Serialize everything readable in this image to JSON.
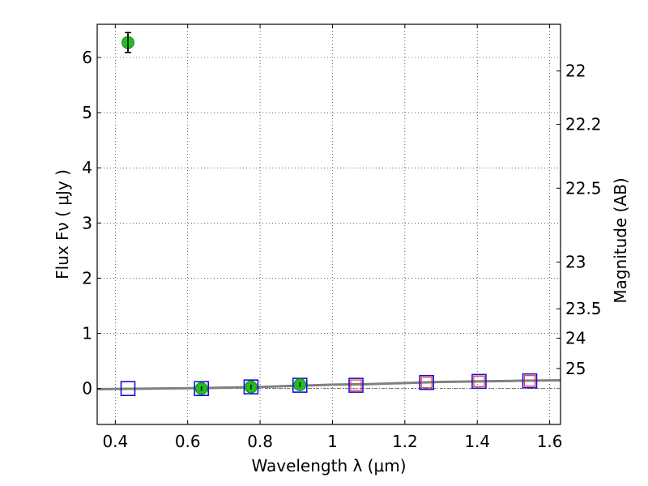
{
  "chart_data": {
    "type": "scatter",
    "xlabel": "Wavelength  λ (μm)",
    "ylabel": "Flux  Fν  ( μJy )",
    "ylabel2": "Magnitude (AB)",
    "xlim": [
      0.35,
      1.63
    ],
    "ylim": [
      -0.65,
      6.6
    ],
    "grid": true,
    "x_ticks": [
      0.4,
      0.6,
      0.8,
      1.0,
      1.2,
      1.4,
      1.6
    ],
    "x_tick_labels": [
      "0.4",
      "0.6",
      "0.8",
      "1",
      "1.2",
      "1.4",
      "1.6"
    ],
    "y_ticks": [
      0,
      1,
      2,
      3,
      4,
      5,
      6
    ],
    "y_tick_labels": [
      "0",
      "1",
      "2",
      "3",
      "4",
      "5",
      "6"
    ],
    "mag_ticks": [
      22,
      22.2,
      22.5,
      23,
      23.5,
      24,
      25
    ],
    "mag_tick_labels": [
      "22",
      "22.2",
      "22.5",
      "23",
      "23.5",
      "24",
      "25"
    ],
    "series": [
      {
        "marker": "circle",
        "color": "#22bb22",
        "points": [
          {
            "x": 0.435,
            "y": 6.27,
            "err": 0.18
          },
          {
            "x": 0.638,
            "y": 0.0,
            "err": 0.04
          },
          {
            "x": 0.775,
            "y": 0.03,
            "err": 0.04
          },
          {
            "x": 0.91,
            "y": 0.07,
            "err": 0.04
          }
        ]
      },
      {
        "marker": "open-square",
        "color": "#1111dd",
        "points": [
          {
            "x": 0.435,
            "y": 0.0
          },
          {
            "x": 0.638,
            "y": 0.0
          },
          {
            "x": 0.775,
            "y": 0.03
          },
          {
            "x": 0.91,
            "y": 0.06
          },
          {
            "x": 1.065,
            "y": 0.06
          },
          {
            "x": 1.26,
            "y": 0.11
          },
          {
            "x": 1.405,
            "y": 0.13
          },
          {
            "x": 1.545,
            "y": 0.14
          }
        ]
      },
      {
        "marker": "open-square",
        "color": "#ee3333",
        "points": [
          {
            "x": 1.065,
            "y": 0.06
          },
          {
            "x": 1.26,
            "y": 0.11
          },
          {
            "x": 1.405,
            "y": 0.13
          },
          {
            "x": 1.545,
            "y": 0.14
          }
        ]
      },
      {
        "marker": "line",
        "color": "#808080",
        "points": [
          {
            "x": 0.35,
            "y": -0.01
          },
          {
            "x": 0.5,
            "y": 0.0
          },
          {
            "x": 0.65,
            "y": 0.01
          },
          {
            "x": 0.8,
            "y": 0.03
          },
          {
            "x": 0.9,
            "y": 0.05
          },
          {
            "x": 1.0,
            "y": 0.07
          },
          {
            "x": 1.1,
            "y": 0.08
          },
          {
            "x": 1.2,
            "y": 0.1
          },
          {
            "x": 1.3,
            "y": 0.12
          },
          {
            "x": 1.4,
            "y": 0.13
          },
          {
            "x": 1.5,
            "y": 0.14
          },
          {
            "x": 1.63,
            "y": 0.15
          }
        ]
      }
    ]
  }
}
